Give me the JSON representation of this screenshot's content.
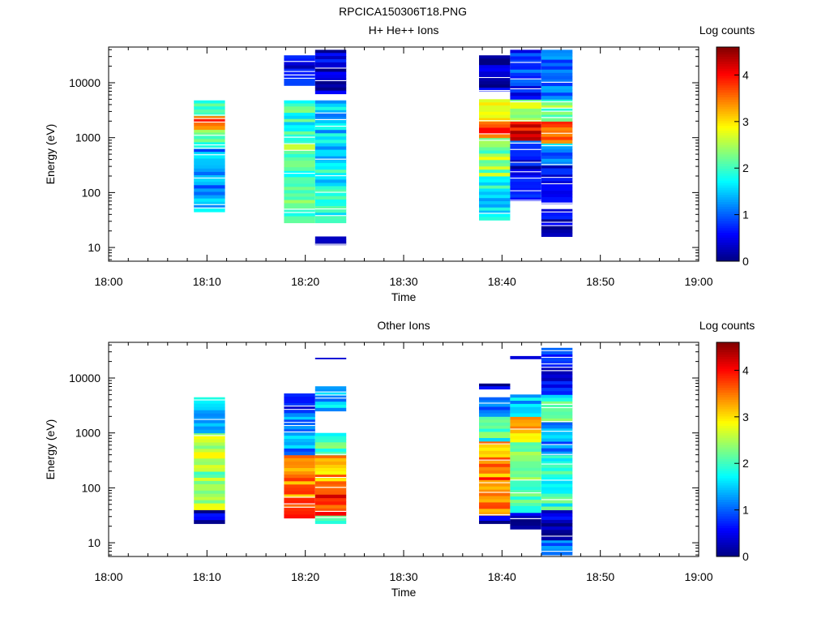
{
  "figure": {
    "title": "RPCICA150306T18.PNG"
  },
  "palette": [
    "#000080",
    "#0000ff",
    "#0080ff",
    "#00ffff",
    "#80ff80",
    "#ffff00",
    "#ff8000",
    "#ff0000",
    "#800000"
  ],
  "chart_data": [
    {
      "type": "heatmap",
      "title": "H+ He++ Ions",
      "xlabel": "Time",
      "ylabel": "Energy (eV)",
      "x_ticks": [
        "18:00",
        "18:10",
        "18:20",
        "18:30",
        "18:40",
        "18:50",
        "19:00"
      ],
      "y_ticks": [
        "10",
        "100",
        "1000",
        "10000"
      ],
      "ylim_log10": [
        0.75,
        4.65
      ],
      "colorbar": {
        "label": "Log counts",
        "min": 0,
        "max": 4.6,
        "ticks": [
          "0",
          "1",
          "2",
          "3",
          "4"
        ]
      },
      "columns": [
        {
          "t0": "18:08:40",
          "t1": "18:11:50",
          "bands": [
            [
              1.65,
              2.8,
              1.3
            ],
            [
              2.8,
              3.15,
              2.1
            ],
            [
              3.15,
              3.4,
              3.5
            ],
            [
              3.4,
              3.68,
              2.0
            ]
          ]
        },
        {
          "t0": "18:17:50",
          "t1": "18:21:00",
          "bands": [
            [
              1.45,
              2.4,
              2.1
            ],
            [
              2.4,
              3.0,
              2.3
            ],
            [
              3.0,
              3.68,
              1.9
            ],
            [
              3.95,
              4.5,
              0.5
            ]
          ]
        },
        {
          "t0": "18:21:00",
          "t1": "18:24:10",
          "bands": [
            [
              1.05,
              1.2,
              0.2
            ],
            [
              1.45,
              2.6,
              1.7
            ],
            [
              2.6,
              3.68,
              1.5
            ],
            [
              3.8,
              4.6,
              0.4
            ]
          ]
        },
        {
          "t0": "18:37:40",
          "t1": "18:40:50",
          "bands": [
            [
              1.5,
              2.3,
              1.7
            ],
            [
              2.3,
              3.0,
              2.4
            ],
            [
              3.0,
              3.3,
              3.6
            ],
            [
              3.3,
              3.7,
              3.0
            ],
            [
              3.85,
              4.5,
              0.4
            ]
          ]
        },
        {
          "t0": "18:40:50",
          "t1": "18:44:00",
          "bands": [
            [
              1.85,
              2.6,
              0.4
            ],
            [
              2.6,
              2.95,
              1.0
            ],
            [
              2.95,
              3.3,
              4.1
            ],
            [
              3.3,
              3.7,
              2.4
            ],
            [
              3.7,
              4.6,
              0.8
            ]
          ]
        },
        {
          "t0": "18:44:00",
          "t1": "18:47:10",
          "bands": [
            [
              1.2,
              1.7,
              0.3
            ],
            [
              1.8,
              2.5,
              0.6
            ],
            [
              2.5,
              2.9,
              1.2
            ],
            [
              2.9,
              3.3,
              3.8
            ],
            [
              3.3,
              3.7,
              2.2
            ],
            [
              3.7,
              4.6,
              1.0
            ]
          ]
        }
      ]
    },
    {
      "type": "heatmap",
      "title": "Other Ions",
      "xlabel": "Time",
      "ylabel": "Energy (eV)",
      "x_ticks": [
        "18:00",
        "18:10",
        "18:20",
        "18:30",
        "18:40",
        "18:50",
        "19:00"
      ],
      "y_ticks": [
        "10",
        "100",
        "1000",
        "10000"
      ],
      "ylim_log10": [
        0.75,
        4.65
      ],
      "colorbar": {
        "label": "Log counts",
        "min": 0,
        "max": 4.6,
        "ticks": [
          "0",
          "1",
          "2",
          "3",
          "4"
        ]
      },
      "columns": [
        {
          "t0": "18:08:40",
          "t1": "18:11:50",
          "bands": [
            [
              1.35,
              1.6,
              0.4
            ],
            [
              1.6,
              2.3,
              2.4
            ],
            [
              2.3,
              3.0,
              2.6
            ],
            [
              3.0,
              3.65,
              1.5
            ]
          ]
        },
        {
          "t0": "18:17:50",
          "t1": "18:21:00",
          "bands": [
            [
              1.45,
              1.7,
              3.9
            ],
            [
              1.7,
              2.6,
              3.5
            ],
            [
              2.6,
              3.3,
              1.2
            ],
            [
              3.3,
              3.72,
              0.8
            ]
          ]
        },
        {
          "t0": "18:21:00",
          "t1": "18:24:10",
          "bands": [
            [
              1.35,
              1.5,
              1.8
            ],
            [
              1.5,
              2.0,
              3.8
            ],
            [
              2.0,
              2.6,
              3.3
            ],
            [
              2.6,
              3.0,
              2.0
            ],
            [
              3.4,
              3.85,
              1.4
            ],
            [
              4.35,
              4.37,
              0.3
            ]
          ]
        },
        {
          "t0": "18:37:40",
          "t1": "18:40:50",
          "bands": [
            [
              1.35,
              1.5,
              0.2
            ],
            [
              1.5,
              2.2,
              3.6
            ],
            [
              2.2,
              2.85,
              3.3
            ],
            [
              2.85,
              3.3,
              2.0
            ],
            [
              3.3,
              3.65,
              1.2
            ],
            [
              3.8,
              3.9,
              0.3
            ]
          ]
        },
        {
          "t0": "18:40:50",
          "t1": "18:44:00",
          "bands": [
            [
              1.25,
              1.55,
              0.3
            ],
            [
              1.55,
              2.6,
              2.1
            ],
            [
              2.6,
              3.0,
              2.5
            ],
            [
              3.0,
              3.3,
              3.2
            ],
            [
              3.3,
              3.7,
              1.4
            ],
            [
              4.35,
              4.4,
              0.3
            ]
          ]
        },
        {
          "t0": "18:44:00",
          "t1": "18:47:10",
          "bands": [
            [
              0.78,
              1.05,
              1.0
            ],
            [
              1.05,
              1.6,
              0.3
            ],
            [
              1.6,
              2.6,
              1.9
            ],
            [
              2.6,
              3.2,
              1.2
            ],
            [
              3.2,
              3.7,
              2.0
            ],
            [
              3.7,
              4.55,
              0.6
            ]
          ]
        }
      ]
    }
  ]
}
